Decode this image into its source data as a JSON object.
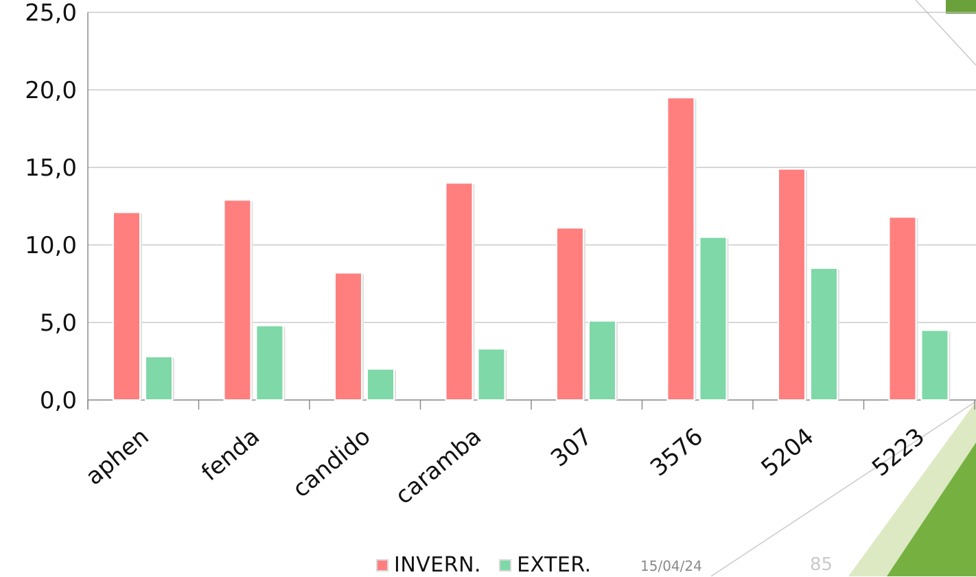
{
  "chart_data": {
    "type": "bar",
    "categories": [
      "aphen",
      "fenda",
      "candido",
      "caramba",
      "307",
      "3576",
      "5204",
      "5223"
    ],
    "series": [
      {
        "name": "INVERN.",
        "color": "#ff7f7f",
        "values": [
          12.1,
          12.9,
          8.2,
          14.0,
          11.1,
          19.5,
          14.9,
          11.8
        ]
      },
      {
        "name": "EXTER.",
        "color": "#7fd8a8",
        "values": [
          2.8,
          4.8,
          2.0,
          3.3,
          5.1,
          10.5,
          8.5,
          4.5
        ]
      }
    ],
    "ylim": [
      0,
      25
    ],
    "yticks": [
      "0,0",
      "5,0",
      "10,0",
      "15,0",
      "20,0",
      "25,0"
    ],
    "grid": true,
    "legend_position": "bottom"
  },
  "footer": {
    "date": "15/04/24",
    "slide_number": "85"
  },
  "theme": {
    "accent_dark": "#76b041",
    "accent_light": "#dde9c3"
  }
}
